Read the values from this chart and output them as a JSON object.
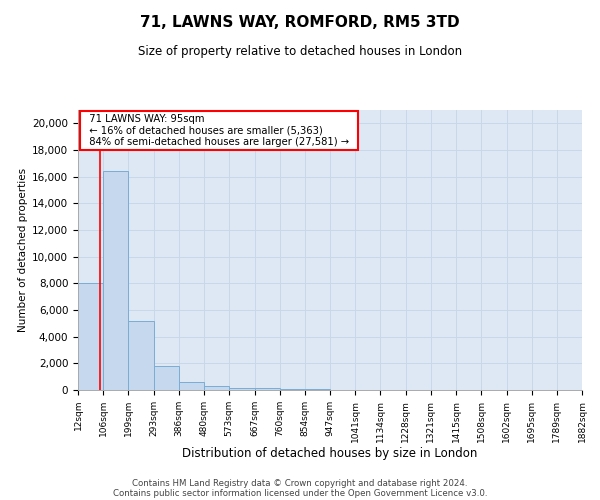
{
  "title": "71, LAWNS WAY, ROMFORD, RM5 3TD",
  "subtitle": "Size of property relative to detached houses in London",
  "xlabel": "Distribution of detached houses by size in London",
  "ylabel": "Number of detached properties",
  "footnote1": "Contains HM Land Registry data © Crown copyright and database right 2024.",
  "footnote2": "Contains public sector information licensed under the Open Government Licence v3.0.",
  "annotation_line1": "71 LAWNS WAY: 95sqm",
  "annotation_line2": "← 16% of detached houses are smaller (5,363)",
  "annotation_line3": "84% of semi-detached houses are larger (27,581) →",
  "property_size": 95,
  "bin_edges": [
    12,
    106,
    199,
    293,
    386,
    480,
    573,
    667,
    760,
    854,
    947,
    1041,
    1134,
    1228,
    1321,
    1415,
    1508,
    1602,
    1695,
    1789,
    1882
  ],
  "bin_labels": [
    "12sqm",
    "106sqm",
    "199sqm",
    "293sqm",
    "386sqm",
    "480sqm",
    "573sqm",
    "667sqm",
    "760sqm",
    "854sqm",
    "947sqm",
    "1041sqm",
    "1134sqm",
    "1228sqm",
    "1321sqm",
    "1415sqm",
    "1508sqm",
    "1602sqm",
    "1695sqm",
    "1789sqm",
    "1882sqm"
  ],
  "bar_heights": [
    8000,
    16400,
    5200,
    1800,
    600,
    280,
    170,
    150,
    100,
    80,
    0,
    0,
    0,
    0,
    0,
    0,
    0,
    0,
    0,
    0
  ],
  "bar_color": "#c5d8ee",
  "bar_edge_color": "#7aacd4",
  "red_line_x": 95,
  "ylim": [
    0,
    21000
  ],
  "yticks": [
    0,
    2000,
    4000,
    6000,
    8000,
    10000,
    12000,
    14000,
    16000,
    18000,
    20000
  ],
  "grid_color": "#c8d8e8",
  "axes_bg_color": "#dde8f4"
}
